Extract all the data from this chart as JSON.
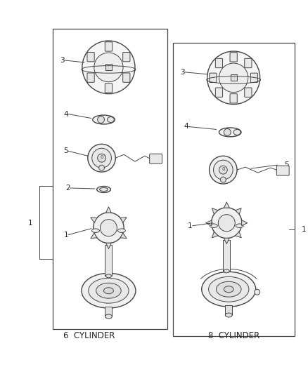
{
  "bg_color": "#ffffff",
  "line_color": "#444444",
  "text_color": "#222222",
  "fig_width": 4.38,
  "fig_height": 5.33,
  "dpi": 100,
  "left_label": "6  CYLINDER",
  "right_label": "8  CYLINDER",
  "label_fontsize": 8.5,
  "part_label_fontsize": 7.5
}
